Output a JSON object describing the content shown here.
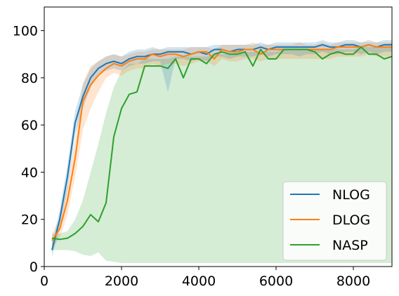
{
  "chart_data": {
    "type": "line",
    "title": "",
    "xlabel": "",
    "ylabel": "",
    "xlim": [
      0,
      9000
    ],
    "ylim": [
      0,
      110
    ],
    "x_ticks": [
      0,
      2000,
      4000,
      6000,
      8000
    ],
    "x_tick_labels": [
      "0",
      "2000",
      "4000",
      "6000",
      "8000"
    ],
    "y_ticks": [
      0,
      20,
      40,
      60,
      80,
      100
    ],
    "y_tick_labels": [
      "0",
      "20",
      "40",
      "60",
      "80",
      "100"
    ],
    "grid": false,
    "legend_position": "bottom-right",
    "series": [
      {
        "name": "NLOG",
        "color": "#1f77b4",
        "x": [
          200,
          400,
          600,
          800,
          1000,
          1200,
          1400,
          1600,
          1800,
          2000,
          2200,
          2400,
          2600,
          2800,
          3000,
          3200,
          3400,
          3600,
          3800,
          4000,
          4200,
          4400,
          4600,
          4800,
          5000,
          5200,
          5400,
          5600,
          5800,
          6000,
          6200,
          6400,
          6600,
          6800,
          7000,
          7200,
          7400,
          7600,
          7800,
          8000,
          8200,
          8400,
          8600,
          8800,
          9000
        ],
        "y": [
          7,
          20,
          38,
          61,
          72,
          80,
          84,
          86,
          87,
          86,
          88,
          89,
          89,
          90,
          90,
          91,
          91,
          91,
          90,
          91,
          90,
          92,
          92,
          91,
          92,
          92,
          92,
          93,
          92,
          93,
          93,
          93,
          93,
          93,
          93,
          94,
          93,
          93,
          94,
          94,
          93,
          94,
          93,
          94,
          94
        ],
        "y_lower": [
          4,
          16,
          32,
          56,
          67,
          76,
          81,
          83,
          84,
          83,
          85,
          86,
          86,
          87,
          87,
          74,
          88,
          88,
          87,
          88,
          87,
          89,
          89,
          88,
          89,
          89,
          89,
          90,
          89,
          90,
          90,
          90,
          89,
          90,
          90,
          91,
          90,
          90,
          91,
          91,
          90,
          91,
          90,
          91,
          91
        ],
        "y_upper": [
          10,
          24,
          43,
          66,
          77,
          84,
          87,
          89,
          90,
          89,
          91,
          92,
          92,
          93,
          92,
          93,
          93,
          93,
          93,
          93,
          93,
          94,
          94,
          94,
          94,
          94,
          94,
          95,
          94,
          95,
          95,
          95,
          95,
          95,
          95,
          96,
          95,
          95,
          96,
          96,
          95,
          96,
          95,
          96,
          96
        ]
      },
      {
        "name": "DLOG",
        "color": "#ff7f0e",
        "x": [
          200,
          400,
          600,
          800,
          1000,
          1200,
          1400,
          1600,
          1800,
          2000,
          2200,
          2400,
          2600,
          2800,
          3000,
          3200,
          3400,
          3600,
          3800,
          4000,
          4200,
          4400,
          4600,
          4800,
          5000,
          5200,
          5400,
          5600,
          5800,
          6000,
          6200,
          6400,
          6600,
          6800,
          7000,
          7200,
          7400,
          7600,
          7800,
          8000,
          8200,
          8400,
          8600,
          8800,
          9000
        ],
        "y": [
          11,
          16,
          28,
          46,
          70,
          77,
          81,
          84,
          86,
          85,
          87,
          88,
          88,
          90,
          89,
          90,
          90,
          89,
          90,
          91,
          91,
          88,
          92,
          91,
          91,
          92,
          92,
          90,
          92,
          92,
          92,
          92,
          92,
          92,
          92,
          92,
          92,
          93,
          93,
          93,
          93,
          94,
          93,
          93,
          93
        ],
        "y_lower": [
          8,
          12,
          22,
          38,
          58,
          67,
          74,
          80,
          82,
          81,
          83,
          84,
          84,
          86,
          85,
          86,
          86,
          85,
          86,
          87,
          87,
          85,
          88,
          87,
          87,
          88,
          88,
          87,
          88,
          88,
          88,
          88,
          88,
          88,
          88,
          88,
          88,
          89,
          89,
          89,
          89,
          90,
          89,
          89,
          89
        ],
        "y_upper": [
          14,
          20,
          34,
          54,
          78,
          85,
          87,
          89,
          90,
          89,
          90,
          91,
          91,
          92,
          92,
          92,
          92,
          92,
          93,
          93,
          93,
          92,
          94,
          94,
          94,
          94,
          95,
          94,
          94,
          94,
          94,
          94,
          95,
          94,
          94,
          95,
          94,
          95,
          95,
          95,
          95,
          95,
          95,
          95,
          95
        ]
      },
      {
        "name": "NASP",
        "color": "#2ca02c",
        "x": [
          200,
          400,
          600,
          800,
          1000,
          1200,
          1400,
          1600,
          1800,
          2000,
          2200,
          2400,
          2600,
          2800,
          3000,
          3200,
          3400,
          3600,
          3800,
          4000,
          4200,
          4400,
          4600,
          4800,
          5000,
          5200,
          5400,
          5600,
          5800,
          6000,
          6200,
          6400,
          6600,
          6800,
          7000,
          7200,
          7400,
          7600,
          7800,
          8000,
          8200,
          8400,
          8600,
          8800,
          9000
        ],
        "y": [
          12,
          11.5,
          12,
          14,
          17,
          22,
          19,
          27,
          55,
          67,
          73,
          74,
          85,
          85,
          85,
          84,
          88,
          80,
          88,
          88,
          86,
          90,
          91,
          90,
          90,
          91,
          85,
          92,
          88,
          88,
          92,
          92,
          92,
          92,
          91,
          88,
          90,
          91,
          90,
          90,
          93,
          90,
          90,
          88,
          89
        ],
        "y_lower": [
          7,
          7,
          7,
          6.5,
          5,
          4.5,
          6,
          2.5,
          2,
          1.5,
          1.5,
          1.5,
          1.5,
          1.5,
          1.5,
          1.5,
          1.5,
          1.5,
          1.5,
          1.5,
          1.5,
          1.5,
          1.5,
          1.5,
          1.5,
          1.5,
          1.5,
          1.5,
          1.5,
          1.5,
          1.5,
          1.5,
          1.5,
          1.5,
          1.5,
          1.5,
          1.5,
          1.5,
          1.5,
          1.5,
          1.5,
          1.5,
          1.5,
          1.5,
          1.5
        ],
        "y_upper": [
          14,
          14,
          15,
          20,
          28,
          40,
          52,
          65,
          76,
          83,
          86,
          86,
          88,
          88,
          88,
          88,
          89,
          89,
          89,
          89,
          89,
          90,
          90,
          90,
          91,
          91,
          91,
          91,
          91,
          91,
          92,
          92,
          92,
          92,
          92,
          92,
          92,
          92,
          92,
          92,
          93,
          93,
          93,
          93,
          93
        ]
      }
    ]
  }
}
